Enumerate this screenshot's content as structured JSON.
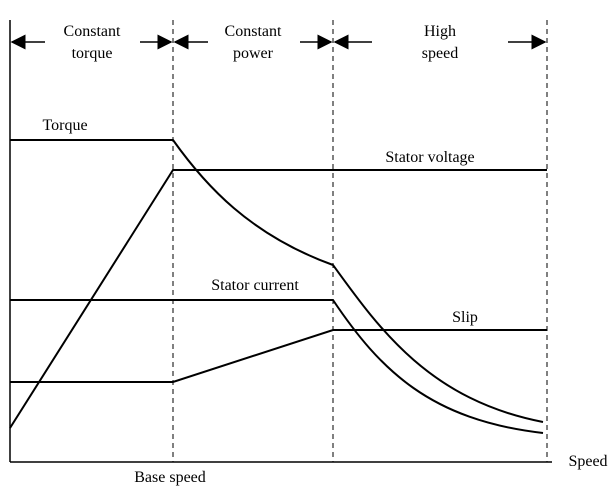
{
  "regions": [
    {
      "line1": "Constant",
      "line2": "torque"
    },
    {
      "line1": "Constant",
      "line2": "power"
    },
    {
      "line1": "High",
      "line2": "speed"
    }
  ],
  "curves": {
    "torque": "Torque",
    "stator_voltage": "Stator voltage",
    "stator_current": "Stator current",
    "slip": "Slip"
  },
  "axis": {
    "base_speed": "Base speed",
    "x_label": "Speed"
  }
}
